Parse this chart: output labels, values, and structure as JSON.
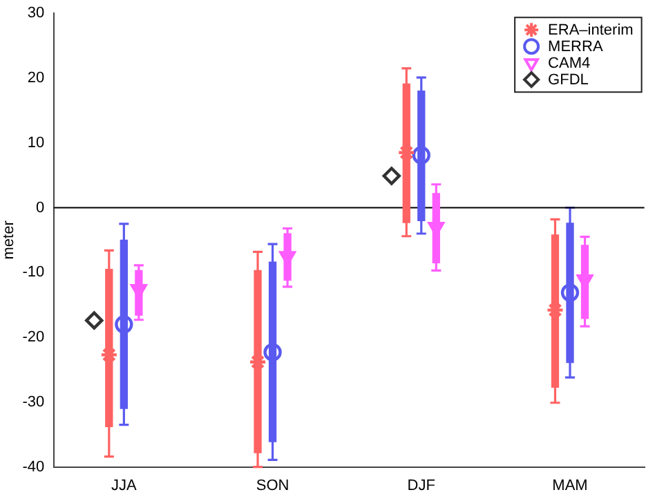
{
  "chart_data": {
    "type": "scatter",
    "ylabel": "meter",
    "categories": [
      "JJA",
      "SON",
      "DJF",
      "MAM"
    ],
    "ylim": [
      -40,
      30
    ],
    "yticks": [
      -40,
      -30,
      -20,
      -10,
      0,
      10,
      20,
      30
    ],
    "grid": false,
    "legend": "top right",
    "ref_lines": [
      {
        "axis": "y",
        "value": 0,
        "color": "#000000"
      }
    ],
    "series": [
      {
        "type": "bar",
        "color": "#ff6262",
        "base": [
          -33.8,
          -37.8,
          -2.3,
          -27.7
        ],
        "values": [
          24.3,
          28.1,
          21.4,
          23.5
        ]
      },
      {
        "type": "bar",
        "color": "#5a5af0",
        "base": [
          -31.0,
          -36.1,
          -2.0,
          -23.9
        ],
        "values": [
          26.0,
          27.7,
          20.0,
          21.5
        ]
      },
      {
        "type": "bar",
        "color": "#ff5cff",
        "base": [
          -16.6,
          -11.2,
          -8.5,
          -17.1
        ],
        "values": [
          6.9,
          7.2,
          10.7,
          11.3
        ]
      },
      {
        "name": "ERA–interim",
        "color": "#ff6262",
        "marker": "cross",
        "values": [
          -22.7,
          -23.8,
          8.5,
          -15.8
        ],
        "errors": [
          [
            -38.4,
            -6.6
          ],
          [
            -40,
            -6.8
          ],
          [
            -4.4,
            21.5
          ],
          [
            -30.1,
            -1.8
          ]
        ]
      },
      {
        "name": "MERRA",
        "color": "#5a5af0",
        "marker": "circle",
        "values": [
          -18.0,
          -22.3,
          8.1,
          -13.1
        ],
        "errors": [
          [
            -33.5,
            -2.5
          ],
          [
            -38.9,
            -5.6
          ],
          [
            -4.0,
            20.1
          ],
          [
            -26.2,
            0.0
          ]
        ]
      },
      {
        "name": "CAM4",
        "color": "#ff5cff",
        "marker": "triangle",
        "values": [
          -12.6,
          -7.5,
          -3.0,
          -11.1
        ],
        "errors": [
          [
            -17.3,
            -8.9
          ],
          [
            -12.2,
            -3.2
          ],
          [
            -9.7,
            3.6
          ],
          [
            -18.3,
            -4.5
          ]
        ]
      },
      {
        "name": "GFDL",
        "color": "#333333",
        "marker": "diamond",
        "values": [
          -17.4,
          null,
          4.9,
          null
        ]
      }
    ]
  }
}
